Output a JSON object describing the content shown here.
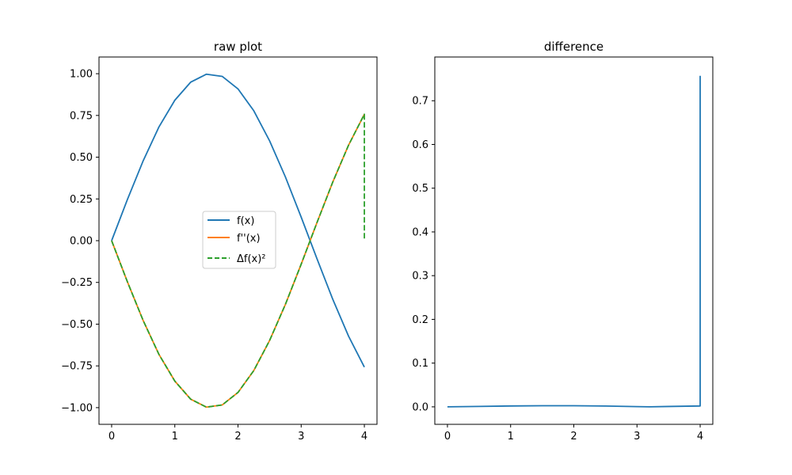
{
  "chart_data": [
    {
      "type": "line",
      "title": "raw plot",
      "xlabel": "",
      "ylabel": "",
      "xlim": [
        -0.2,
        4.2
      ],
      "ylim": [
        -1.1,
        1.1
      ],
      "xticks": [
        0,
        1,
        2,
        3,
        4
      ],
      "xtick_labels": [
        "0",
        "1",
        "2",
        "3",
        "4"
      ],
      "yticks": [
        1.0,
        0.75,
        0.5,
        0.25,
        0.0,
        -0.25,
        -0.5,
        -0.75,
        -1.0
      ],
      "ytick_labels": [
        "1.00",
        "0.75",
        "0.50",
        "0.25",
        "0.00",
        "−0.25",
        "−0.50",
        "−0.75",
        "−1.00"
      ],
      "grid": false,
      "legend_position": "center",
      "series": [
        {
          "name": "f(x)",
          "color": "#1f77b4",
          "style": "solid",
          "x": [
            0,
            0.25,
            0.5,
            0.75,
            1,
            1.25,
            1.5,
            1.75,
            2,
            2.25,
            2.5,
            2.75,
            3,
            3.25,
            3.5,
            3.75,
            4
          ],
          "y": [
            0,
            0.247,
            0.479,
            0.682,
            0.841,
            0.949,
            0.997,
            0.984,
            0.909,
            0.778,
            0.598,
            0.382,
            0.141,
            -0.108,
            -0.351,
            -0.572,
            -0.757
          ]
        },
        {
          "name": "f''(x)",
          "color": "#ff7f0e",
          "style": "solid",
          "x": [
            0,
            0.25,
            0.5,
            0.75,
            1,
            1.25,
            1.5,
            1.75,
            2,
            2.25,
            2.5,
            2.75,
            3,
            3.25,
            3.5,
            3.75,
            4
          ],
          "y": [
            0,
            -0.247,
            -0.479,
            -0.682,
            -0.841,
            -0.949,
            -0.997,
            -0.984,
            -0.909,
            -0.778,
            -0.598,
            -0.382,
            -0.141,
            0.108,
            0.351,
            0.572,
            0.757
          ]
        },
        {
          "name": "Δf(x)²",
          "color": "#2ca02c",
          "style": "dashed",
          "x": [
            0,
            0.25,
            0.5,
            0.75,
            1,
            1.25,
            1.5,
            1.75,
            2,
            2.25,
            2.5,
            2.75,
            3,
            3.25,
            3.5,
            3.75,
            4,
            4
          ],
          "y": [
            0,
            -0.247,
            -0.479,
            -0.682,
            -0.841,
            -0.949,
            -0.997,
            -0.984,
            -0.909,
            -0.778,
            -0.598,
            -0.382,
            -0.141,
            0.108,
            0.351,
            0.572,
            0.757,
            0.0
          ]
        }
      ]
    },
    {
      "type": "line",
      "title": "difference",
      "xlabel": "",
      "ylabel": "",
      "xlim": [
        -0.2,
        4.2
      ],
      "ylim": [
        -0.04,
        0.8
      ],
      "xticks": [
        0,
        1,
        2,
        3,
        4
      ],
      "xtick_labels": [
        "0",
        "1",
        "2",
        "3",
        "4"
      ],
      "yticks": [
        0.0,
        0.1,
        0.2,
        0.3,
        0.4,
        0.5,
        0.6,
        0.7
      ],
      "ytick_labels": [
        "0.0",
        "0.1",
        "0.2",
        "0.3",
        "0.4",
        "0.5",
        "0.6",
        "0.7"
      ],
      "grid": false,
      "series": [
        {
          "color": "#1f77b4",
          "style": "solid",
          "x": [
            0,
            0.5,
            1,
            1.5,
            2,
            2.5,
            3,
            3.2,
            3.5,
            4,
            4
          ],
          "y": [
            0,
            0.001,
            0.002,
            0.0025,
            0.0025,
            0.0018,
            0.0005,
            0.0,
            0.0008,
            0.002,
            0.757
          ]
        }
      ]
    }
  ]
}
